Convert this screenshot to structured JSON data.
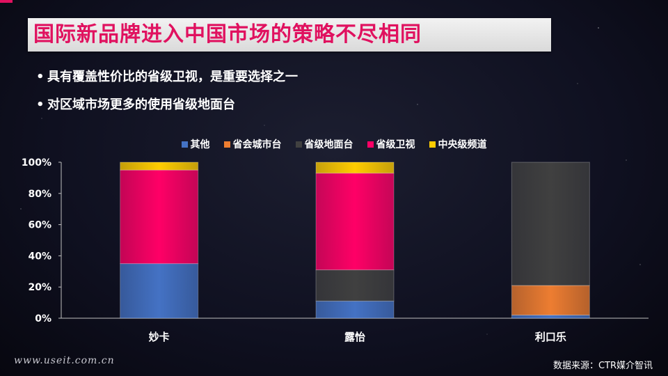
{
  "title": "国际新品牌进入中国市场的策略不尽相同",
  "bullets": [
    "具有覆盖性价比的省级卫视，是重要选择之一",
    "对区域市场更多的使用省级地面台"
  ],
  "footer": {
    "website": "www.useit.com.cn",
    "source": "数据来源：CTR媒介智讯"
  },
  "chart_data": {
    "type": "bar",
    "stacked": true,
    "categories": [
      "妙卡",
      "露怡",
      "利口乐"
    ],
    "series": [
      {
        "name": "其他",
        "color": "#4472c4",
        "values": [
          35,
          11,
          2
        ]
      },
      {
        "name": "省会城市台",
        "color": "#ed7d31",
        "values": [
          0,
          0,
          19
        ]
      },
      {
        "name": "省级地面台",
        "color": "#404040",
        "values": [
          0,
          20,
          79
        ]
      },
      {
        "name": "省级卫视",
        "color": "#ff0066",
        "values": [
          60,
          62,
          0
        ]
      },
      {
        "name": "中央级频道",
        "color": "#ffcc00",
        "values": [
          5,
          7,
          0
        ]
      }
    ],
    "yticks": [
      "0%",
      "20%",
      "40%",
      "60%",
      "80%",
      "100%"
    ],
    "ylim": [
      0,
      100
    ],
    "legend": "top",
    "grid": false
  }
}
